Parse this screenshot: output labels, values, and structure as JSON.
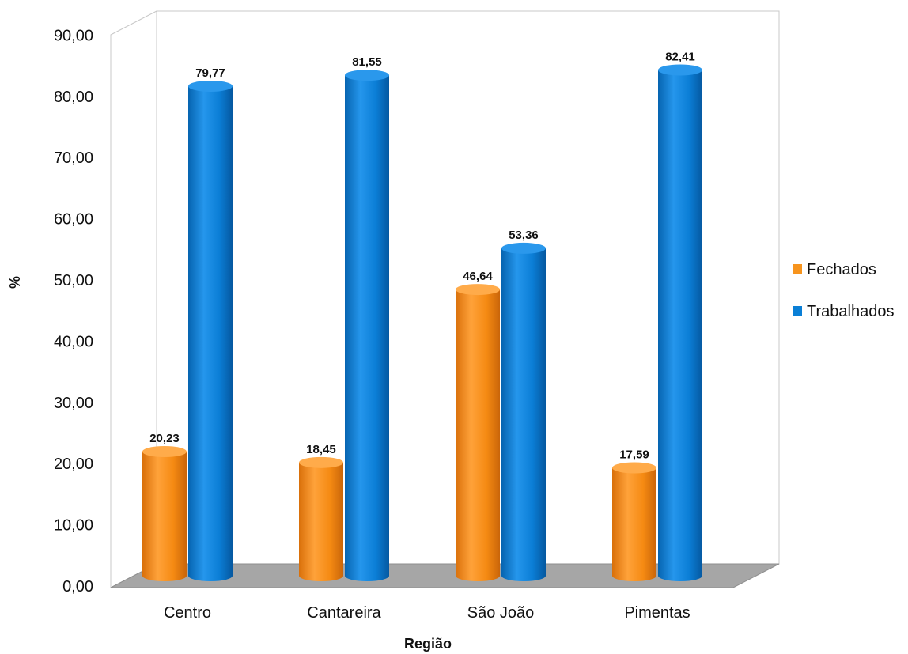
{
  "chart_data": {
    "type": "bar",
    "categories": [
      "Centro",
      "Cantareira",
      "São João",
      "Pimentas"
    ],
    "series": [
      {
        "name": "Fechados",
        "values": [
          20.23,
          18.45,
          46.64,
          17.59
        ],
        "labels": [
          "20,23",
          "18,45",
          "46,64",
          "17,59"
        ],
        "color": "#f7941d"
      },
      {
        "name": "Trabalhados",
        "values": [
          79.77,
          81.55,
          53.36,
          82.41
        ],
        "labels": [
          "79,77",
          "81,55",
          "53,36",
          "82,41"
        ],
        "color": "#0a7fd6"
      }
    ],
    "xlabel": "Região",
    "ylabel": "%",
    "ylim": [
      0,
      90
    ],
    "yticks": [
      0,
      10,
      20,
      30,
      40,
      50,
      60,
      70,
      80,
      90
    ],
    "ytick_labels": [
      "0,00",
      "10,00",
      "20,00",
      "30,00",
      "40,00",
      "50,00",
      "60,00",
      "70,00",
      "80,00",
      "90,00"
    ],
    "grid": false,
    "legend_position": "right",
    "style": "3d-cylinder"
  }
}
